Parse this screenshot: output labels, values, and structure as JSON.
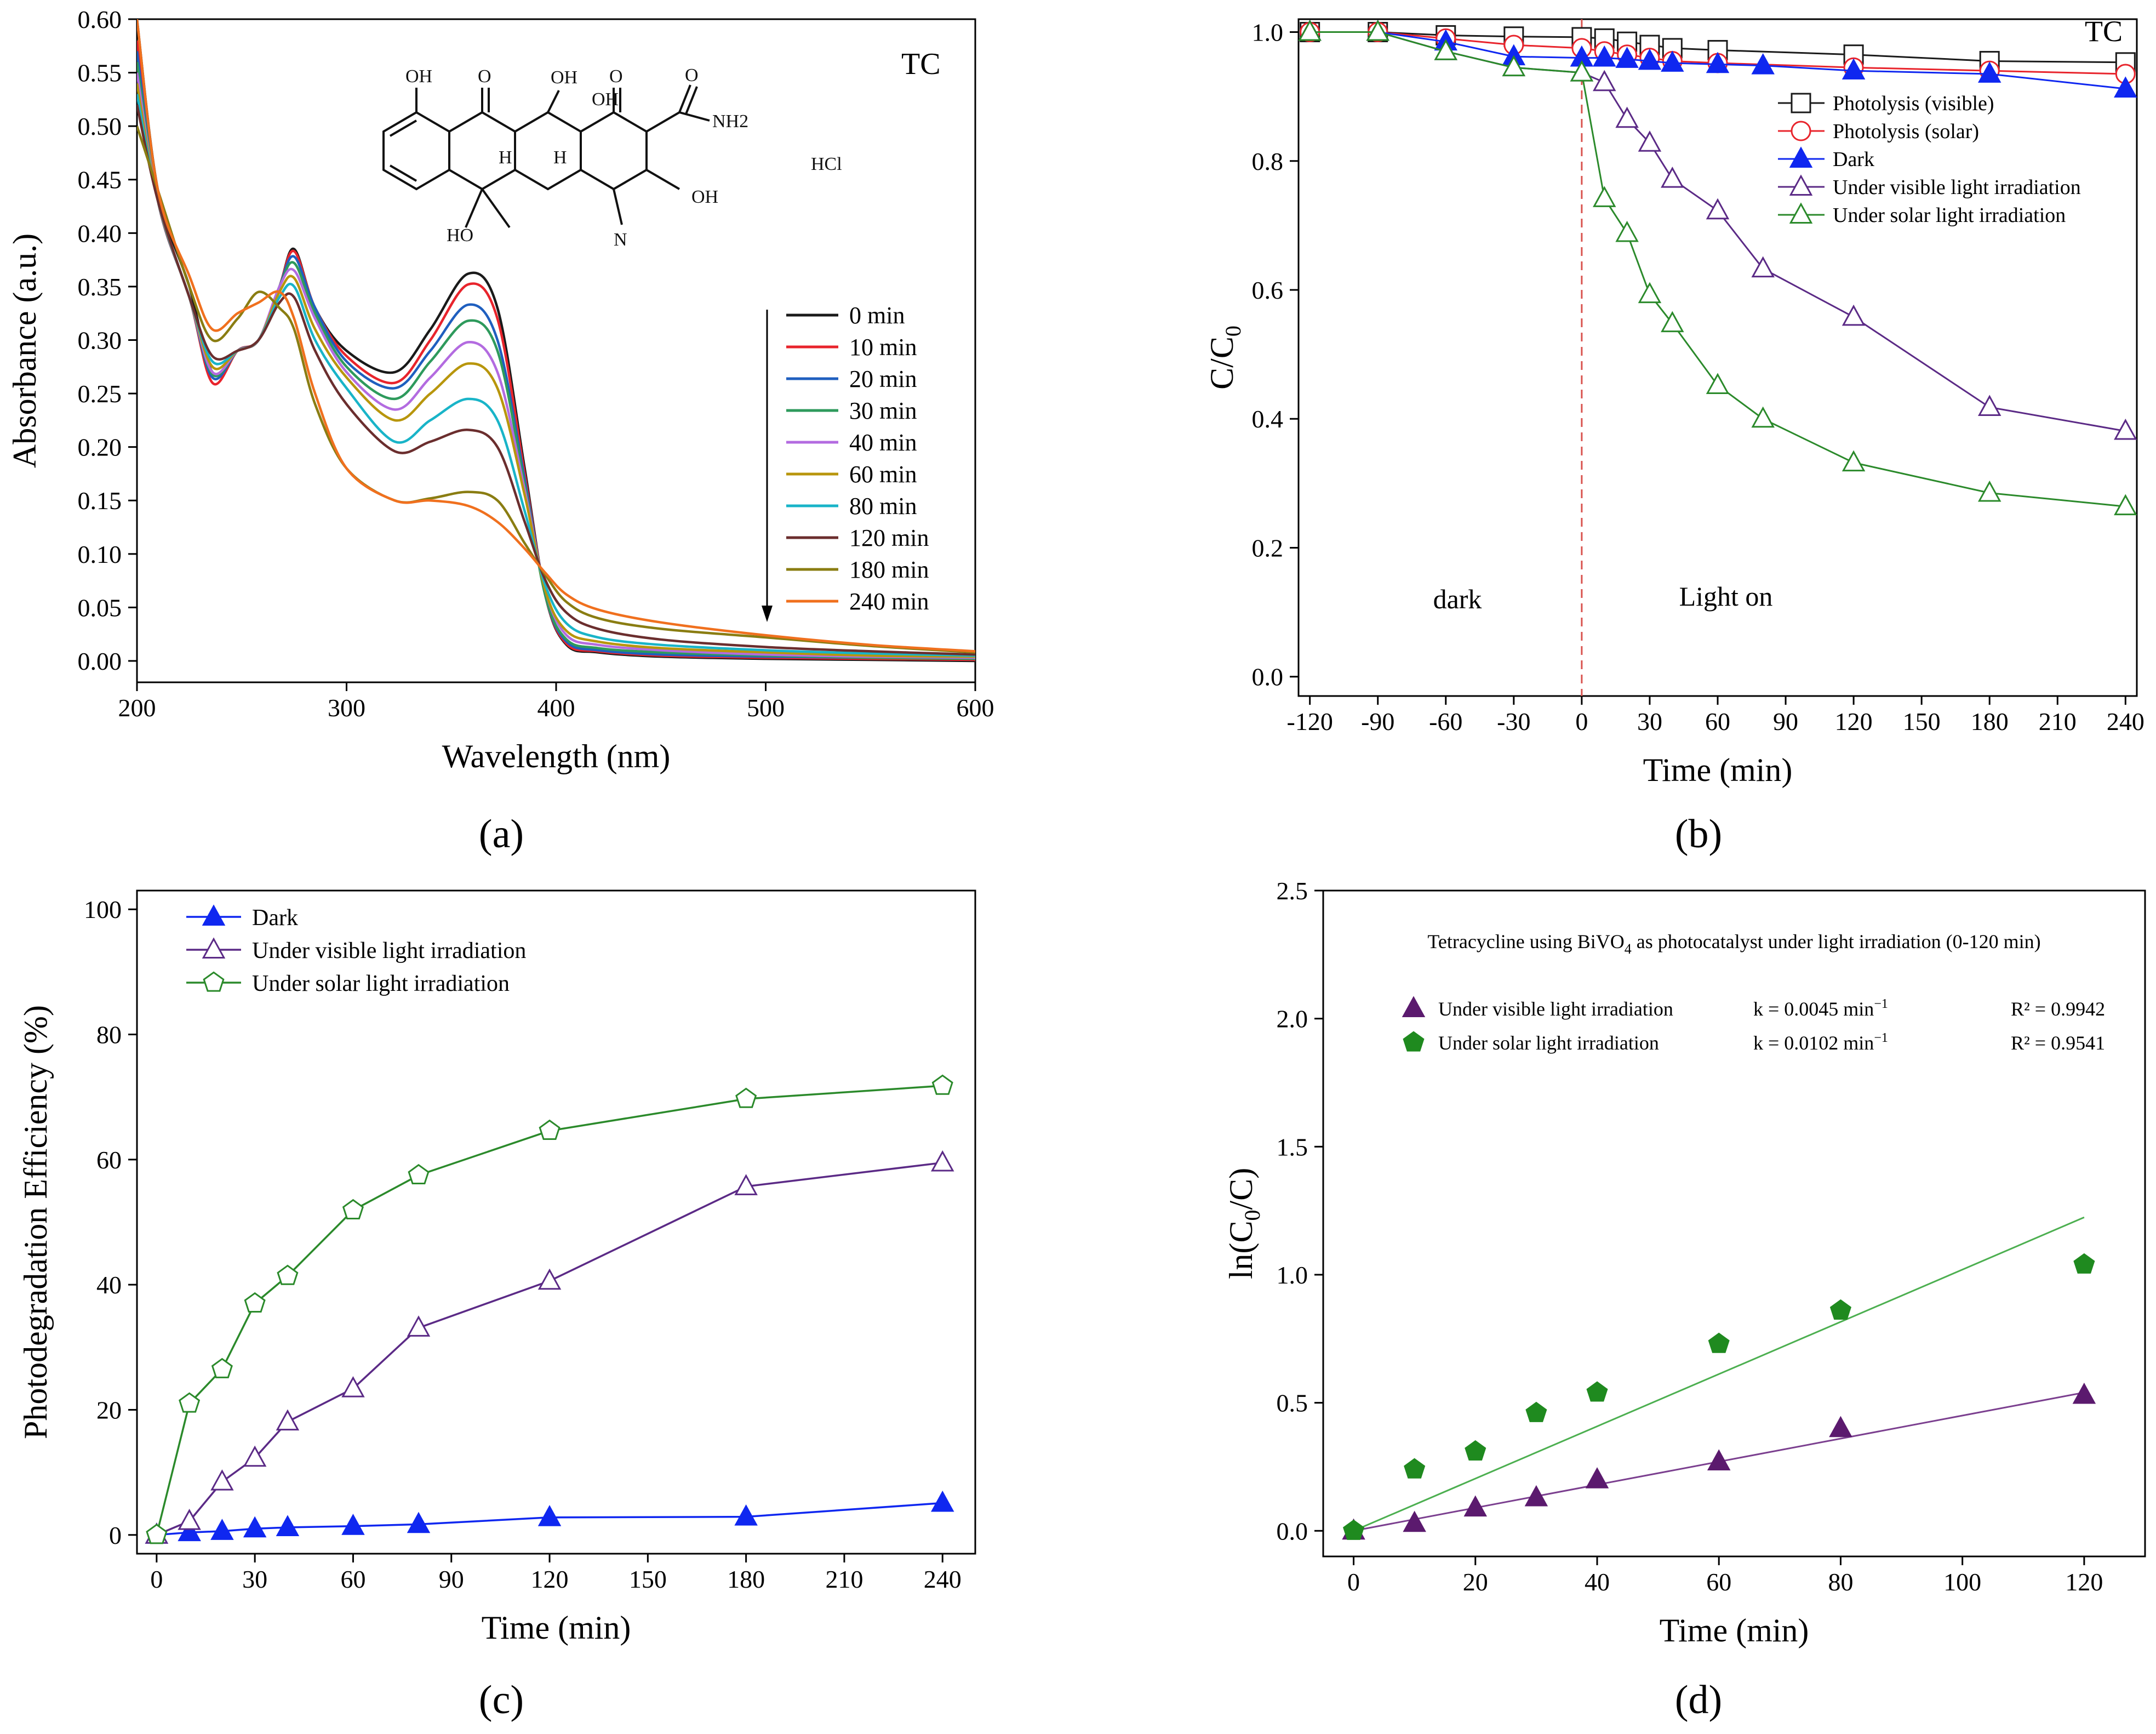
{
  "panels": {
    "a": {
      "label": "(a)"
    },
    "b": {
      "label": "(b)"
    },
    "c": {
      "label": "(c)"
    },
    "d": {
      "label": "(d)"
    }
  },
  "chart_data": [
    {
      "id": "a",
      "type": "line",
      "title": "TC",
      "xlabel": "Wavelength (nm)",
      "ylabel": "Absorbance (a.u.)",
      "xlim": [
        200,
        600
      ],
      "ylim": [
        -0.02,
        0.6
      ],
      "xticks": [
        200,
        300,
        400,
        500,
        600
      ],
      "yticks": [
        0.0,
        0.05,
        0.1,
        0.15,
        0.2,
        0.25,
        0.3,
        0.35,
        0.4,
        0.45,
        0.5,
        0.55,
        0.6
      ],
      "molecule_labels": {
        "oh": "OH",
        "o": "O",
        "nh2": "NH2",
        "h": "H",
        "hcl": "HCl",
        "ho": "HO",
        "n": "N"
      },
      "legend": {
        "position": "right",
        "arrow": "down"
      },
      "x": [
        200,
        210,
        225,
        236,
        248,
        258,
        268,
        275,
        285,
        300,
        323,
        340,
        358,
        372,
        385,
        395,
        405,
        420,
        450,
        500,
        550,
        600
      ],
      "series": [
        {
          "name": "0 min",
          "color": "#1a1a1a",
          "values": [
            0.6,
            0.44,
            0.35,
            0.27,
            0.29,
            0.3,
            0.35,
            0.385,
            0.33,
            0.29,
            0.27,
            0.31,
            0.362,
            0.33,
            0.18,
            0.06,
            0.015,
            0.008,
            0.004,
            0.002,
            0.001,
            0.0
          ]
        },
        {
          "name": "10 min",
          "color": "#e8242c",
          "values": [
            0.58,
            0.43,
            0.34,
            0.26,
            0.29,
            0.3,
            0.35,
            0.383,
            0.33,
            0.285,
            0.26,
            0.3,
            0.352,
            0.32,
            0.175,
            0.06,
            0.016,
            0.009,
            0.005,
            0.003,
            0.002,
            0.001
          ]
        },
        {
          "name": "20 min",
          "color": "#1f5fbf",
          "values": [
            0.57,
            0.43,
            0.34,
            0.265,
            0.29,
            0.3,
            0.35,
            0.378,
            0.33,
            0.28,
            0.255,
            0.29,
            0.333,
            0.3,
            0.17,
            0.06,
            0.018,
            0.01,
            0.006,
            0.004,
            0.003,
            0.002
          ]
        },
        {
          "name": "30 min",
          "color": "#2e9a5c",
          "values": [
            0.56,
            0.43,
            0.34,
            0.268,
            0.29,
            0.3,
            0.35,
            0.372,
            0.325,
            0.275,
            0.245,
            0.28,
            0.318,
            0.29,
            0.165,
            0.06,
            0.02,
            0.012,
            0.008,
            0.005,
            0.003,
            0.002
          ]
        },
        {
          "name": "40 min",
          "color": "#b36be0",
          "values": [
            0.55,
            0.43,
            0.34,
            0.27,
            0.29,
            0.3,
            0.35,
            0.365,
            0.32,
            0.27,
            0.235,
            0.265,
            0.298,
            0.27,
            0.16,
            0.065,
            0.024,
            0.015,
            0.01,
            0.006,
            0.004,
            0.003
          ]
        },
        {
          "name": "60 min",
          "color": "#b8960c",
          "values": [
            0.54,
            0.43,
            0.34,
            0.275,
            0.29,
            0.3,
            0.345,
            0.358,
            0.31,
            0.265,
            0.225,
            0.25,
            0.278,
            0.255,
            0.155,
            0.065,
            0.028,
            0.018,
            0.012,
            0.008,
            0.005,
            0.004
          ]
        },
        {
          "name": "80 min",
          "color": "#19b4c8",
          "values": [
            0.53,
            0.43,
            0.34,
            0.28,
            0.29,
            0.3,
            0.34,
            0.35,
            0.3,
            0.255,
            0.205,
            0.225,
            0.245,
            0.225,
            0.14,
            0.07,
            0.035,
            0.022,
            0.015,
            0.01,
            0.007,
            0.005
          ]
        },
        {
          "name": "120 min",
          "color": "#6b2e2e",
          "values": [
            0.52,
            0.43,
            0.34,
            0.285,
            0.29,
            0.3,
            0.335,
            0.34,
            0.29,
            0.24,
            0.196,
            0.205,
            0.216,
            0.2,
            0.13,
            0.075,
            0.045,
            0.03,
            0.02,
            0.013,
            0.009,
            0.006
          ]
        },
        {
          "name": "180 min",
          "color": "#8a7d12",
          "values": [
            0.5,
            0.44,
            0.35,
            0.3,
            0.32,
            0.345,
            0.33,
            0.31,
            0.24,
            0.18,
            0.15,
            0.152,
            0.158,
            0.15,
            0.11,
            0.08,
            0.055,
            0.04,
            0.03,
            0.022,
            0.014,
            0.008
          ]
        },
        {
          "name": "240 min",
          "color": "#f0701e",
          "values": [
            0.6,
            0.44,
            0.36,
            0.31,
            0.325,
            0.335,
            0.345,
            0.32,
            0.25,
            0.18,
            0.15,
            0.15,
            0.145,
            0.13,
            0.105,
            0.082,
            0.062,
            0.048,
            0.036,
            0.024,
            0.015,
            0.009
          ]
        }
      ]
    },
    {
      "id": "b",
      "type": "line",
      "title": "TC",
      "xlabel": "Time (min)",
      "ylabel": "C/C0",
      "xlim": [
        -125,
        245
      ],
      "ylim": [
        -0.03,
        1.02
      ],
      "xticks": [
        -120,
        -90,
        -60,
        -30,
        0,
        30,
        60,
        90,
        120,
        150,
        180,
        210,
        240
      ],
      "yticks": [
        0.0,
        0.2,
        0.4,
        0.6,
        0.8,
        1.0
      ],
      "annotations": [
        "dark",
        "Light on"
      ],
      "divider_x": 0,
      "legend": {
        "position": "top-right"
      },
      "series": [
        {
          "name": "Photolysis (visible)",
          "color": "#1a1a1a",
          "marker": "square-open",
          "x": [
            -120,
            -90,
            -60,
            -30,
            0,
            10,
            20,
            30,
            40,
            60,
            120,
            180,
            240
          ],
          "values": [
            1.0,
            1.0,
            0.995,
            0.993,
            0.992,
            0.99,
            0.985,
            0.98,
            0.975,
            0.972,
            0.965,
            0.955,
            0.953
          ]
        },
        {
          "name": "Photolysis (solar)",
          "color": "#e8242c",
          "marker": "circle-open",
          "x": [
            -120,
            -90,
            -60,
            -30,
            0,
            10,
            20,
            30,
            40,
            60,
            120,
            180,
            240
          ],
          "values": [
            1.0,
            1.0,
            0.99,
            0.98,
            0.975,
            0.97,
            0.965,
            0.96,
            0.955,
            0.952,
            0.945,
            0.94,
            0.935
          ]
        },
        {
          "name": "Dark",
          "color": "#0f27f0",
          "marker": "triangle-filled",
          "x": [
            -120,
            -90,
            -60,
            -30,
            0,
            10,
            20,
            30,
            40,
            60,
            80,
            120,
            180,
            240
          ],
          "values": [
            1.0,
            1.0,
            0.985,
            0.962,
            0.96,
            0.96,
            0.958,
            0.955,
            0.952,
            0.95,
            0.948,
            0.94,
            0.935,
            0.912
          ]
        },
        {
          "name": "Under visible light irradiation",
          "color": "#5b2a86",
          "marker": "triangle-open",
          "x": [
            -120,
            -90,
            -60,
            -30,
            0,
            10,
            20,
            30,
            40,
            60,
            80,
            120,
            180,
            240
          ],
          "values": [
            1.0,
            1.0,
            0.97,
            0.945,
            0.937,
            0.922,
            0.865,
            0.828,
            0.772,
            0.723,
            0.633,
            0.558,
            0.418,
            0.381
          ]
        },
        {
          "name": "Under solar light irradiation",
          "color": "#2b8a2b",
          "marker": "triangle-open",
          "x": [
            -120,
            -90,
            -60,
            -30,
            0,
            10,
            20,
            30,
            40,
            60,
            80,
            120,
            180,
            240
          ],
          "values": [
            1.0,
            1.0,
            0.97,
            0.945,
            0.937,
            0.742,
            0.688,
            0.593,
            0.548,
            0.452,
            0.4,
            0.332,
            0.285,
            0.264
          ]
        }
      ]
    },
    {
      "id": "c",
      "type": "line",
      "xlabel": "Time (min)",
      "ylabel": "Photodegradation Efficiency (%)",
      "xlim": [
        -6,
        250
      ],
      "ylim": [
        -3,
        103
      ],
      "xticks": [
        0,
        30,
        60,
        90,
        120,
        150,
        180,
        210,
        240
      ],
      "yticks": [
        0,
        20,
        40,
        60,
        80,
        100
      ],
      "legend": {
        "position": "top-left"
      },
      "series": [
        {
          "name": "Dark",
          "color": "#0f27f0",
          "marker": "triangle-filled",
          "x": [
            0,
            10,
            20,
            30,
            40,
            60,
            80,
            120,
            180,
            240
          ],
          "values": [
            0,
            0.4,
            0.6,
            1.0,
            1.2,
            1.4,
            1.7,
            2.8,
            2.9,
            5.1
          ]
        },
        {
          "name": "Under visible light irradiation",
          "color": "#5b2a86",
          "marker": "triangle-open",
          "x": [
            0,
            10,
            20,
            30,
            40,
            60,
            80,
            120,
            180,
            240
          ],
          "values": [
            0,
            2.2,
            8.5,
            12.3,
            18.1,
            23.4,
            33.1,
            40.6,
            55.7,
            59.5
          ]
        },
        {
          "name": "Under solar light irradiation",
          "color": "#2b8a2b",
          "marker": "pentagon-open",
          "x": [
            0,
            10,
            20,
            30,
            40,
            60,
            80,
            120,
            180,
            240
          ],
          "values": [
            0,
            21.0,
            26.5,
            37.0,
            41.4,
            51.9,
            57.5,
            64.6,
            69.7,
            71.8
          ]
        }
      ]
    },
    {
      "id": "d",
      "type": "scatter",
      "title": "Tetracycline using BiVO4 as photocatalyst under light irradiation (0-120 min)",
      "xlabel": "Time (min)",
      "ylabel": "ln(C0/C)",
      "xlim": [
        -5,
        130
      ],
      "ylim": [
        -0.1,
        2.5
      ],
      "xticks": [
        0,
        20,
        40,
        60,
        80,
        100,
        120
      ],
      "yticks": [
        0.0,
        0.5,
        1.0,
        1.5,
        2.0,
        2.5
      ],
      "legend": {
        "position": "top-left"
      },
      "series": [
        {
          "name": "Under visible light irradiation",
          "color": "#5b1a6e",
          "marker": "triangle-filled",
          "k": "k = 0.0045 min",
          "r2": "R² = 0.9942",
          "slope": 0.0045,
          "x": [
            0,
            10,
            20,
            30,
            40,
            60,
            80,
            120
          ],
          "values": [
            0,
            0.03,
            0.09,
            0.13,
            0.2,
            0.27,
            0.4,
            0.53
          ]
        },
        {
          "name": "Under solar light irradiation",
          "color": "#1f8a1f",
          "marker": "pentagon-filled",
          "k": "k = 0.0102 min",
          "r2": "R² = 0.9541",
          "slope": 0.0102,
          "x": [
            0,
            10,
            20,
            30,
            40,
            60,
            80,
            120
          ],
          "values": [
            0,
            0.24,
            0.31,
            0.46,
            0.54,
            0.73,
            0.86,
            1.04
          ]
        }
      ]
    }
  ]
}
